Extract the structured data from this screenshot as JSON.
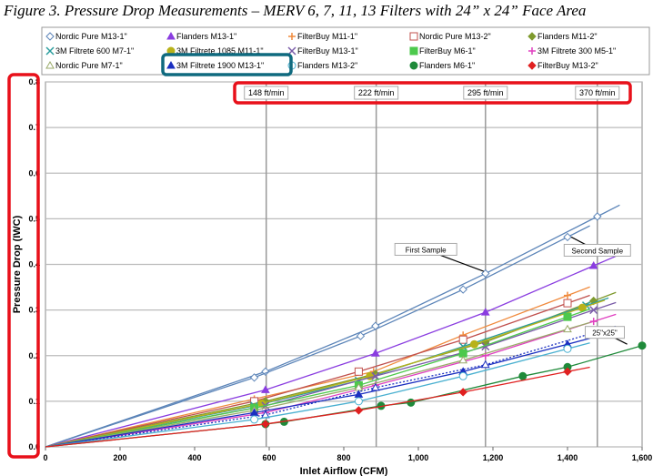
{
  "chart_data": {
    "type": "line",
    "title": "Figure 3. Pressure Drop Measurements – MERV 6, 7, 11, 13 Filters with 24” x 24” Face Area",
    "xlabel": "Inlet Airflow (CFM)",
    "ylabel": "Pressure Drop (IWC)",
    "xlim": [
      0,
      1600
    ],
    "ylim": [
      0,
      0.8
    ],
    "xticks": [
      "0",
      "200",
      "400",
      "600",
      "800",
      "1,000",
      "1,200",
      "1,400",
      "1,600"
    ],
    "yticks": [
      "0.0",
      "0.1",
      "0.2",
      "0.3",
      "0.4",
      "0.5",
      "0.6",
      "0.7",
      "0.8"
    ],
    "grid": true,
    "legend_position": "top",
    "velocity_gridlines": [
      {
        "x": 592,
        "label": "148 ft/min"
      },
      {
        "x": 887,
        "label": "222 ft/min"
      },
      {
        "x": 1180,
        "label": "295 ft/min"
      },
      {
        "x": 1480,
        "label": "370 ft/min"
      }
    ],
    "annotations": [
      {
        "text": "First Sample"
      },
      {
        "text": "Second Sample"
      },
      {
        "text": "25\"x25\""
      }
    ],
    "highlighted_legend": "3M Filtrete 1900 M13-1\"",
    "series": [
      {
        "name": "Nordic Pure M13-1\"",
        "color": "#5b84b8",
        "marker": "diamond",
        "x": [
          590,
          885,
          1180,
          1480
        ],
        "y": [
          0.165,
          0.265,
          0.38,
          0.505
        ],
        "second_sample": {
          "x": [
            560,
            845,
            1120,
            1400
          ],
          "y": [
            0.152,
            0.243,
            0.345,
            0.46
          ]
        }
      },
      {
        "name": "Flanders M13-1\"",
        "color": "#8a3de0",
        "marker": "triangle",
        "x": [
          590,
          885,
          1180,
          1470
        ],
        "y": [
          0.125,
          0.205,
          0.295,
          0.397
        ]
      },
      {
        "name": "FilterBuy M11-1\"",
        "color": "#f08a3c",
        "marker": "plus",
        "x": [
          560,
          880,
          1120,
          1400
        ],
        "y": [
          0.105,
          0.165,
          0.245,
          0.332
        ]
      },
      {
        "name": "Nordic Pure M13-2\"",
        "color": "#c0504d",
        "marker": "square-open",
        "x": [
          560,
          840,
          1120,
          1400
        ],
        "y": [
          0.1,
          0.165,
          0.235,
          0.315
        ]
      },
      {
        "name": "Flanders M11-2\"",
        "color": "#7f9a2e",
        "marker": "diamond-filled",
        "x": [
          590,
          885,
          1180,
          1470
        ],
        "y": [
          0.1,
          0.16,
          0.23,
          0.32
        ]
      },
      {
        "name": "3M Filtrete 600 M7-1\"",
        "color": "#2a9d9d",
        "marker": "x",
        "x": [
          560,
          840,
          1120,
          1450
        ],
        "y": [
          0.09,
          0.145,
          0.22,
          0.31
        ]
      },
      {
        "name": "3M Filtrete 1085 M11-1\"",
        "color": "#b8b21a",
        "marker": "circle-filled",
        "x": [
          580,
          870,
          1150,
          1440
        ],
        "y": [
          0.095,
          0.155,
          0.225,
          0.305
        ]
      },
      {
        "name": "FilterBuy M13-1\"",
        "color": "#7a5ca8",
        "marker": "x",
        "x": [
          590,
          885,
          1180,
          1470
        ],
        "y": [
          0.09,
          0.155,
          0.22,
          0.3
        ]
      },
      {
        "name": "FilterBuy M6-1\"",
        "color": "#4cc94c",
        "marker": "square",
        "x": [
          560,
          840,
          1120,
          1400
        ],
        "y": [
          0.085,
          0.135,
          0.205,
          0.285
        ]
      },
      {
        "name": "3M Filtrete 300 M5-1\"",
        "color": "#e040c0",
        "marker": "plus",
        "x": [
          590,
          885,
          1180,
          1470
        ],
        "y": [
          0.075,
          0.135,
          0.2,
          0.275
        ]
      },
      {
        "name": "Nordic Pure M7-1\"",
        "color": "#9aaa6a",
        "marker": "triangle-open",
        "x": [
          560,
          840,
          1120,
          1400
        ],
        "y": [
          0.08,
          0.13,
          0.19,
          0.258
        ]
      },
      {
        "name": "3M Filtrete 1900 M13-1\"",
        "color": "#1a2fc0",
        "marker": "triangle",
        "x": [
          560,
          840,
          1120,
          1400
        ],
        "y": [
          0.075,
          0.115,
          0.165,
          0.225
        ],
        "second_sample": {
          "x": [
            590,
            885,
            1180,
            1470
          ],
          "y": [
            0.07,
            0.13,
            0.18,
            0.25
          ]
        }
      },
      {
        "name": "Flanders M13-2\"",
        "color": "#4ab0d0",
        "marker": "circle-open",
        "x": [
          560,
          840,
          1120,
          1400
        ],
        "y": [
          0.06,
          0.1,
          0.155,
          0.215
        ]
      },
      {
        "name": "Flanders M6-1\"",
        "color": "#1f8a3a",
        "marker": "circle-filled",
        "x": [
          590,
          640,
          900,
          980,
          1280,
          1400,
          1600
        ],
        "y": [
          0.05,
          0.055,
          0.09,
          0.097,
          0.155,
          0.175,
          0.222
        ]
      },
      {
        "name": "FilterBuy M13-2\"",
        "color": "#e02020",
        "marker": "diamond-filled",
        "x": [
          590,
          840,
          1120,
          1400
        ],
        "y": [
          0.05,
          0.08,
          0.12,
          0.165
        ]
      }
    ]
  }
}
